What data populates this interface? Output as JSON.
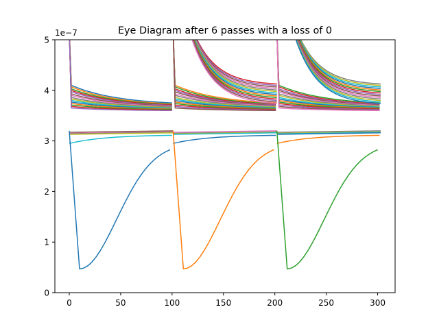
{
  "chart_data": {
    "type": "line",
    "title": "Eye Diagram after 6 passes with a loss of 0",
    "xlabel": "",
    "ylabel": "",
    "y_offset_label": "1e−7",
    "xlim": [
      -14,
      317
    ],
    "ylim": [
      0,
      5
    ],
    "x_ticks": [
      0,
      50,
      100,
      150,
      200,
      250,
      300
    ],
    "y_ticks": [
      0,
      1,
      2,
      3,
      4,
      5
    ],
    "grid": false,
    "legend": "none",
    "line_width": 1.5,
    "colors": [
      "#1f77b4",
      "#ff7f0e",
      "#2ca02c",
      "#d62728",
      "#9467bd",
      "#8c564b",
      "#e377c2",
      "#7f7f7f",
      "#bcbd22",
      "#17becf"
    ],
    "segment_starts": [
      0,
      101,
      202
    ],
    "segment_length": 101,
    "families": {
      "high_decay": {
        "spike_time": 2,
        "endpoints": [
          {
            "start": 4.1,
            "end": 3.75
          },
          {
            "start": 4.07,
            "end": 3.73
          },
          {
            "start": 4.03,
            "end": 3.72
          },
          {
            "start": 4.0,
            "end": 3.71
          },
          {
            "start": 3.97,
            "end": 3.7
          },
          {
            "start": 3.93,
            "end": 3.69
          },
          {
            "start": 3.9,
            "end": 3.68
          },
          {
            "start": 3.86,
            "end": 3.67
          },
          {
            "start": 3.83,
            "end": 3.66
          },
          {
            "start": 3.8,
            "end": 3.65
          },
          {
            "start": 3.77,
            "end": 3.64
          },
          {
            "start": 3.74,
            "end": 3.63
          },
          {
            "start": 3.71,
            "end": 3.62
          },
          {
            "start": 3.68,
            "end": 3.61
          },
          {
            "start": 3.65,
            "end": 3.6
          }
        ]
      },
      "overshoot": {
        "peak": 5.2,
        "ends": [
          4.1,
          4.07,
          4.04,
          4.01,
          3.98,
          3.95,
          3.92,
          3.89,
          3.86,
          3.83,
          3.8,
          3.77,
          3.74,
          3.71
        ]
      },
      "flat_mid": {
        "levels": [
          3.19,
          3.17,
          3.16,
          3.15
        ]
      },
      "rising_low": {
        "start": 2.95,
        "end": 3.12
      },
      "dip": {
        "bottom_time": 10,
        "bottom": 0.47,
        "end": 2.95,
        "start": 3.2
      }
    }
  }
}
